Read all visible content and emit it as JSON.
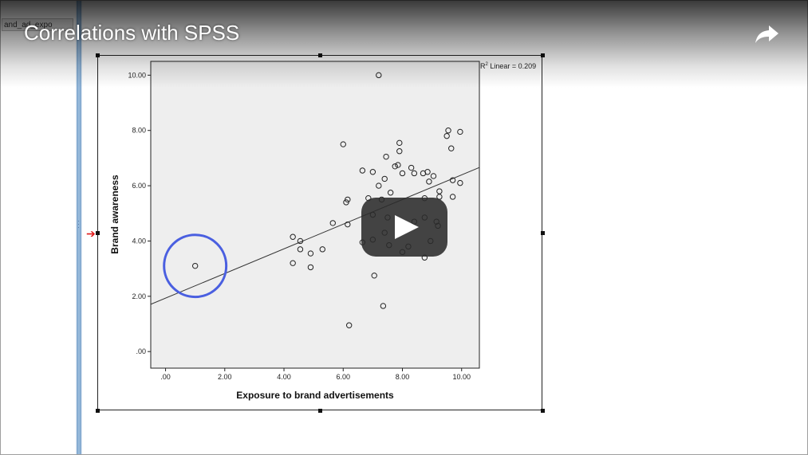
{
  "video": {
    "title": "Correlations with SPSS",
    "share_icon": "share-arrow-icon",
    "play_icon": "play-icon"
  },
  "spss": {
    "variable_tab": "and_ad_expo",
    "selection_marker_icon": "red-arrow-icon"
  },
  "colors": {
    "plot_bg": "#eeeeee",
    "highlight_circle": "#4a5fe0",
    "selection_arrow": "#e01818",
    "play_button_bg": "#2b2b2b"
  },
  "chart_data": {
    "type": "scatter",
    "title": "",
    "xlabel": "Exposure to brand advertisements",
    "ylabel": "Brand awareness",
    "xlim": [
      -0.5,
      10.6
    ],
    "ylim": [
      -0.6,
      10.5
    ],
    "xticks": [
      ".00",
      "2.00",
      "4.00",
      "6.00",
      "8.00",
      "10.00"
    ],
    "xtick_values": [
      0,
      2,
      4,
      6,
      8,
      10
    ],
    "yticks": [
      ".00",
      "2.00",
      "4.00",
      "6.00",
      "8.00",
      "10.00"
    ],
    "ytick_values": [
      0,
      2,
      4,
      6,
      8,
      10
    ],
    "grid": false,
    "fit_line": {
      "label_r2": "R",
      "label_sup": "2",
      "label_rest": " Linear = 0.209",
      "x": [
        -0.5,
        10.6
      ],
      "y": [
        1.71,
        6.66
      ]
    },
    "highlight": {
      "x": 1.0,
      "y": 3.1,
      "radius": 1.05
    },
    "points": [
      [
        1.0,
        3.1
      ],
      [
        4.3,
        4.15
      ],
      [
        4.3,
        3.2
      ],
      [
        4.55,
        4.0
      ],
      [
        4.55,
        3.7
      ],
      [
        4.9,
        3.55
      ],
      [
        4.9,
        3.05
      ],
      [
        5.3,
        3.7
      ],
      [
        5.65,
        4.65
      ],
      [
        6.0,
        7.5
      ],
      [
        6.1,
        5.4
      ],
      [
        6.15,
        5.5
      ],
      [
        6.15,
        4.6
      ],
      [
        6.2,
        0.95
      ],
      [
        6.65,
        6.55
      ],
      [
        6.65,
        3.95
      ],
      [
        6.85,
        5.55
      ],
      [
        7.0,
        6.5
      ],
      [
        7.0,
        4.95
      ],
      [
        7.0,
        4.05
      ],
      [
        7.05,
        2.75
      ],
      [
        7.2,
        6.0
      ],
      [
        7.2,
        10.0
      ],
      [
        7.3,
        5.5
      ],
      [
        7.35,
        1.65
      ],
      [
        7.4,
        6.25
      ],
      [
        7.4,
        4.3
      ],
      [
        7.45,
        7.05
      ],
      [
        7.5,
        4.85
      ],
      [
        7.55,
        3.85
      ],
      [
        7.6,
        5.75
      ],
      [
        7.75,
        6.7
      ],
      [
        7.85,
        6.75
      ],
      [
        7.9,
        7.55
      ],
      [
        7.9,
        7.25
      ],
      [
        7.95,
        4.45
      ],
      [
        8.0,
        6.45
      ],
      [
        8.0,
        3.6
      ],
      [
        8.2,
        3.8
      ],
      [
        8.3,
        6.65
      ],
      [
        8.4,
        6.45
      ],
      [
        8.4,
        4.7
      ],
      [
        8.7,
        6.45
      ],
      [
        8.75,
        5.55
      ],
      [
        8.75,
        4.85
      ],
      [
        8.75,
        3.4
      ],
      [
        8.85,
        6.5
      ],
      [
        8.9,
        6.15
      ],
      [
        8.95,
        4.0
      ],
      [
        9.05,
        6.35
      ],
      [
        9.15,
        4.7
      ],
      [
        9.2,
        4.55
      ],
      [
        9.25,
        5.8
      ],
      [
        9.25,
        5.6
      ],
      [
        9.5,
        7.8
      ],
      [
        9.55,
        8.0
      ],
      [
        9.65,
        7.35
      ],
      [
        9.7,
        6.2
      ],
      [
        9.7,
        5.6
      ],
      [
        9.95,
        7.95
      ],
      [
        9.95,
        6.1
      ]
    ]
  }
}
